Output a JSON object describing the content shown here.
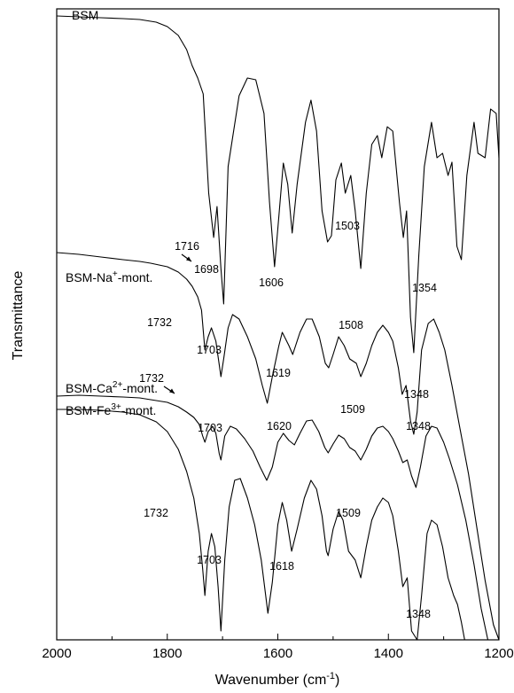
{
  "chart_data": {
    "type": "line",
    "title": "",
    "xlabel": "Wavenumber (cm-1)",
    "xlabel_parts": {
      "main": "Wavenumber (cm",
      "sup": "-1",
      "tail": ")"
    },
    "ylabel": "Transmittance",
    "xlim": [
      2000,
      1200
    ],
    "x_ticks": [
      "2000",
      "1800",
      "1600",
      "1400",
      "1200"
    ],
    "y_ticks": false,
    "grid": false,
    "legend": "inline labels",
    "series": [
      {
        "name": "BSM",
        "label_main": "BSM",
        "label_sup": "",
        "label_tail": "",
        "points": [
          [
            2000,
            100
          ],
          [
            1960,
            99
          ],
          [
            1920,
            98
          ],
          [
            1880,
            97
          ],
          [
            1850,
            96
          ],
          [
            1820,
            93
          ],
          [
            1800,
            88
          ],
          [
            1780,
            78
          ],
          [
            1765,
            62
          ],
          [
            1755,
            44
          ],
          [
            1745,
            30
          ],
          [
            1735,
            12
          ],
          [
            1725,
            -100
          ],
          [
            1716,
            -150
          ],
          [
            1710,
            -115
          ],
          [
            1703,
            -185
          ],
          [
            1698,
            -225
          ],
          [
            1690,
            -70
          ],
          [
            1670,
            10
          ],
          [
            1655,
            30
          ],
          [
            1640,
            28
          ],
          [
            1625,
            -10
          ],
          [
            1615,
            -110
          ],
          [
            1606,
            -183
          ],
          [
            1600,
            -140
          ],
          [
            1590,
            -66
          ],
          [
            1582,
            -90
          ],
          [
            1574,
            -145
          ],
          [
            1565,
            -90
          ],
          [
            1550,
            -20
          ],
          [
            1540,
            5
          ],
          [
            1530,
            -30
          ],
          [
            1520,
            -120
          ],
          [
            1510,
            -155
          ],
          [
            1503,
            -148
          ],
          [
            1495,
            -85
          ],
          [
            1485,
            -66
          ],
          [
            1478,
            -100
          ],
          [
            1468,
            -80
          ],
          [
            1460,
            -120
          ],
          [
            1450,
            -185
          ],
          [
            1440,
            -100
          ],
          [
            1430,
            -45
          ],
          [
            1420,
            -35
          ],
          [
            1412,
            -60
          ],
          [
            1402,
            -25
          ],
          [
            1392,
            -30
          ],
          [
            1380,
            -110
          ],
          [
            1373,
            -150
          ],
          [
            1367,
            -120
          ],
          [
            1360,
            -240
          ],
          [
            1354,
            -280
          ],
          [
            1345,
            -170
          ],
          [
            1335,
            -70
          ],
          [
            1322,
            -20
          ],
          [
            1312,
            -60
          ],
          [
            1302,
            -55
          ],
          [
            1292,
            -80
          ],
          [
            1285,
            -65
          ],
          [
            1276,
            -160
          ],
          [
            1268,
            -175
          ],
          [
            1258,
            -80
          ],
          [
            1245,
            -20
          ],
          [
            1238,
            -55
          ],
          [
            1225,
            -60
          ],
          [
            1215,
            -5
          ],
          [
            1205,
            -10
          ],
          [
            1200,
            -60
          ]
        ]
      },
      {
        "name": "BSM-Na+-mont.",
        "label_main": "BSM-Na",
        "label_sup": "+",
        "label_tail": "-mont.",
        "points": [
          [
            2000,
            100
          ],
          [
            1960,
            98
          ],
          [
            1920,
            95
          ],
          [
            1880,
            92
          ],
          [
            1850,
            90
          ],
          [
            1830,
            88
          ],
          [
            1800,
            84
          ],
          [
            1780,
            78
          ],
          [
            1765,
            70
          ],
          [
            1755,
            62
          ],
          [
            1745,
            50
          ],
          [
            1738,
            35
          ],
          [
            1732,
            -10
          ],
          [
            1726,
            5
          ],
          [
            1720,
            15
          ],
          [
            1712,
            0
          ],
          [
            1703,
            -40
          ],
          [
            1698,
            -20
          ],
          [
            1690,
            15
          ],
          [
            1682,
            30
          ],
          [
            1670,
            25
          ],
          [
            1655,
            5
          ],
          [
            1640,
            -20
          ],
          [
            1628,
            -50
          ],
          [
            1619,
            -70
          ],
          [
            1610,
            -40
          ],
          [
            1598,
            -5
          ],
          [
            1592,
            10
          ],
          [
            1580,
            -5
          ],
          [
            1573,
            -15
          ],
          [
            1560,
            10
          ],
          [
            1548,
            25
          ],
          [
            1538,
            25
          ],
          [
            1525,
            5
          ],
          [
            1514,
            -25
          ],
          [
            1508,
            -30
          ],
          [
            1500,
            -15
          ],
          [
            1490,
            5
          ],
          [
            1480,
            -5
          ],
          [
            1470,
            -20
          ],
          [
            1458,
            -25
          ],
          [
            1450,
            -40
          ],
          [
            1440,
            -25
          ],
          [
            1430,
            -5
          ],
          [
            1420,
            10
          ],
          [
            1410,
            18
          ],
          [
            1400,
            10
          ],
          [
            1392,
            0
          ],
          [
            1382,
            -30
          ],
          [
            1375,
            -60
          ],
          [
            1368,
            -50
          ],
          [
            1360,
            -90
          ],
          [
            1354,
            -105
          ],
          [
            1348,
            -80
          ],
          [
            1340,
            -10
          ],
          [
            1328,
            20
          ],
          [
            1318,
            25
          ],
          [
            1308,
            10
          ],
          [
            1298,
            -10
          ],
          [
            1285,
            -50
          ],
          [
            1270,
            -100
          ],
          [
            1255,
            -150
          ],
          [
            1240,
            -210
          ],
          [
            1225,
            -270
          ],
          [
            1210,
            -320
          ],
          [
            1200,
            -345
          ]
        ]
      },
      {
        "name": "BSM-Ca2+-mont.",
        "label_main": "BSM-Ca",
        "label_sup": "2+",
        "label_tail": "-mont.",
        "points": [
          [
            2000,
            100
          ],
          [
            1960,
            101
          ],
          [
            1920,
            100
          ],
          [
            1880,
            99
          ],
          [
            1850,
            98
          ],
          [
            1830,
            96
          ],
          [
            1800,
            93
          ],
          [
            1780,
            88
          ],
          [
            1765,
            82
          ],
          [
            1752,
            76
          ],
          [
            1742,
            68
          ],
          [
            1736,
            55
          ],
          [
            1732,
            48
          ],
          [
            1726,
            60
          ],
          [
            1718,
            66
          ],
          [
            1712,
            58
          ],
          [
            1706,
            35
          ],
          [
            1703,
            28
          ],
          [
            1696,
            55
          ],
          [
            1686,
            66
          ],
          [
            1675,
            63
          ],
          [
            1660,
            52
          ],
          [
            1645,
            38
          ],
          [
            1632,
            20
          ],
          [
            1620,
            5
          ],
          [
            1610,
            20
          ],
          [
            1600,
            48
          ],
          [
            1590,
            58
          ],
          [
            1580,
            50
          ],
          [
            1570,
            45
          ],
          [
            1560,
            58
          ],
          [
            1548,
            72
          ],
          [
            1538,
            73
          ],
          [
            1526,
            60
          ],
          [
            1515,
            42
          ],
          [
            1509,
            36
          ],
          [
            1500,
            46
          ],
          [
            1490,
            56
          ],
          [
            1480,
            52
          ],
          [
            1470,
            42
          ],
          [
            1460,
            38
          ],
          [
            1450,
            28
          ],
          [
            1440,
            40
          ],
          [
            1430,
            55
          ],
          [
            1420,
            64
          ],
          [
            1410,
            66
          ],
          [
            1400,
            60
          ],
          [
            1392,
            52
          ],
          [
            1382,
            38
          ],
          [
            1374,
            25
          ],
          [
            1366,
            28
          ],
          [
            1358,
            10
          ],
          [
            1350,
            -3
          ],
          [
            1342,
            20
          ],
          [
            1332,
            55
          ],
          [
            1322,
            66
          ],
          [
            1312,
            64
          ],
          [
            1300,
            48
          ],
          [
            1290,
            30
          ],
          [
            1275,
            0
          ],
          [
            1260,
            -40
          ],
          [
            1245,
            -90
          ],
          [
            1232,
            -140
          ],
          [
            1220,
            -190
          ],
          [
            1212,
            -230
          ],
          [
            1205,
            -260
          ]
        ]
      },
      {
        "name": "BSM-Fe3+-mont.",
        "label_main": "BSM-Fe",
        "label_sup": "3+",
        "label_tail": "-mont.",
        "points": [
          [
            2000,
            100
          ],
          [
            1960,
            100
          ],
          [
            1920,
            99
          ],
          [
            1880,
            97
          ],
          [
            1850,
            94
          ],
          [
            1820,
            86
          ],
          [
            1800,
            75
          ],
          [
            1780,
            55
          ],
          [
            1765,
            30
          ],
          [
            1752,
            0
          ],
          [
            1742,
            -40
          ],
          [
            1736,
            -80
          ],
          [
            1732,
            -110
          ],
          [
            1726,
            -60
          ],
          [
            1720,
            -40
          ],
          [
            1714,
            -55
          ],
          [
            1708,
            -100
          ],
          [
            1703,
            -150
          ],
          [
            1696,
            -70
          ],
          [
            1688,
            -10
          ],
          [
            1678,
            20
          ],
          [
            1668,
            22
          ],
          [
            1655,
            0
          ],
          [
            1642,
            -30
          ],
          [
            1630,
            -70
          ],
          [
            1618,
            -130
          ],
          [
            1610,
            -95
          ],
          [
            1600,
            -30
          ],
          [
            1592,
            -5
          ],
          [
            1584,
            -25
          ],
          [
            1575,
            -60
          ],
          [
            1565,
            -35
          ],
          [
            1552,
            0
          ],
          [
            1540,
            20
          ],
          [
            1530,
            10
          ],
          [
            1520,
            -20
          ],
          [
            1512,
            -60
          ],
          [
            1509,
            -65
          ],
          [
            1500,
            -35
          ],
          [
            1490,
            -15
          ],
          [
            1482,
            -25
          ],
          [
            1472,
            -60
          ],
          [
            1460,
            -70
          ],
          [
            1450,
            -90
          ],
          [
            1440,
            -55
          ],
          [
            1430,
            -25
          ],
          [
            1420,
            -10
          ],
          [
            1410,
            0
          ],
          [
            1400,
            -5
          ],
          [
            1392,
            -20
          ],
          [
            1382,
            -60
          ],
          [
            1374,
            -100
          ],
          [
            1366,
            -90
          ],
          [
            1358,
            -150
          ],
          [
            1348,
            -180
          ],
          [
            1340,
            -110
          ],
          [
            1330,
            -40
          ],
          [
            1322,
            -25
          ],
          [
            1312,
            -30
          ],
          [
            1302,
            -55
          ],
          [
            1292,
            -90
          ],
          [
            1282,
            -110
          ],
          [
            1275,
            -120
          ],
          [
            1268,
            -140
          ],
          [
            1262,
            -160
          ],
          [
            1255,
            -180
          ],
          [
            1248,
            -210
          ],
          [
            1242,
            -240
          ],
          [
            1237,
            -265
          ],
          [
            1234,
            -275
          ]
        ]
      }
    ],
    "annotations": [
      {
        "text": "1716",
        "series": 0
      },
      {
        "text": "1698",
        "series": 0
      },
      {
        "text": "1606",
        "series": 0
      },
      {
        "text": "1503",
        "series": 0
      },
      {
        "text": "1354",
        "series": 0
      },
      {
        "text": "1732",
        "series": 1
      },
      {
        "text": "1703",
        "series": 1
      },
      {
        "text": "1619",
        "series": 1
      },
      {
        "text": "1508",
        "series": 1
      },
      {
        "text": "1348",
        "series": 1
      },
      {
        "text": "1732",
        "series": 2
      },
      {
        "text": "1703",
        "series": 2
      },
      {
        "text": "1620",
        "series": 2
      },
      {
        "text": "1509",
        "series": 2
      },
      {
        "text": "1348",
        "series": 2
      },
      {
        "text": "1732",
        "series": 3
      },
      {
        "text": "1703",
        "series": 3
      },
      {
        "text": "1618",
        "series": 3
      },
      {
        "text": "1509",
        "series": 3
      },
      {
        "text": "1348",
        "series": 3
      }
    ]
  }
}
